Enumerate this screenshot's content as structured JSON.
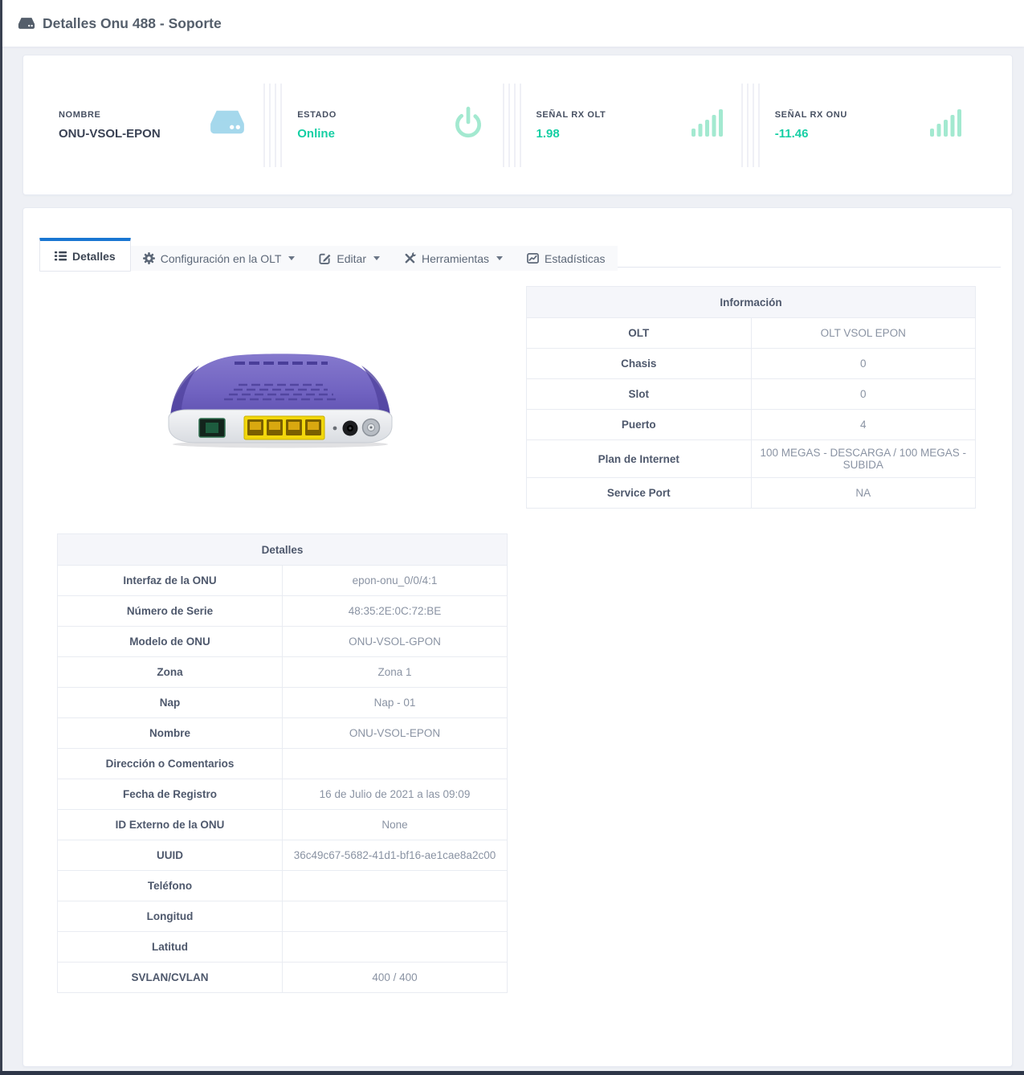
{
  "page": {
    "title": "Detalles Onu 488 - Soporte"
  },
  "colors": {
    "teal": "#15cfa4",
    "tab_blue": "#1976d2",
    "icon_blue": "#a5d8ec",
    "icon_mint": "#a3e9d0",
    "router_purple": "#7163c1"
  },
  "stats": [
    {
      "label": "NOMBRE",
      "value": "ONU-VSOL-EPON",
      "icon": "hdd-icon",
      "teal": false
    },
    {
      "label": "ESTADO",
      "value": "Online",
      "icon": "power-icon",
      "teal": true
    },
    {
      "label": "SEÑAL RX OLT",
      "value": "1.98",
      "icon": "signal-bars-icon",
      "teal": true
    },
    {
      "label": "SEÑAL RX ONU",
      "value": "-11.46",
      "icon": "signal-bars-icon",
      "teal": true
    }
  ],
  "tabs": [
    {
      "label": "Detalles",
      "icon": "list-icon",
      "active": true,
      "caret": false
    },
    {
      "label": "Configuración en la OLT",
      "icon": "gear-icon",
      "active": false,
      "caret": true
    },
    {
      "label": "Editar",
      "icon": "edit-icon",
      "active": false,
      "caret": true
    },
    {
      "label": "Herramientas",
      "icon": "tools-icon",
      "active": false,
      "caret": true
    },
    {
      "label": "Estadísticas",
      "icon": "chart-icon",
      "active": false,
      "caret": false
    }
  ],
  "info_table": {
    "title": "Información",
    "rows": [
      [
        "OLT",
        "OLT VSOL EPON"
      ],
      [
        "Chasis",
        "0"
      ],
      [
        "Slot",
        "0"
      ],
      [
        "Puerto",
        "4"
      ],
      [
        "Plan de Internet",
        "100 MEGAS - DESCARGA / 100 MEGAS - SUBIDA"
      ],
      [
        "Service Port",
        "NA"
      ]
    ]
  },
  "details_table": {
    "title": "Detalles",
    "rows": [
      [
        "Interfaz de la ONU",
        "epon-onu_0/0/4:1"
      ],
      [
        "Número de Serie",
        "48:35:2E:0C:72:BE"
      ],
      [
        "Modelo de ONU",
        "ONU-VSOL-GPON"
      ],
      [
        "Zona",
        "Zona 1"
      ],
      [
        "Nap",
        "Nap - 01"
      ],
      [
        "Nombre",
        "ONU-VSOL-EPON"
      ],
      [
        "Dirección o Comentarios",
        ""
      ],
      [
        "Fecha de Registro",
        "16 de Julio de 2021 a las 09:09"
      ],
      [
        "ID Externo de la ONU",
        "None"
      ],
      [
        "UUID",
        "36c49c67-5682-41d1-bf16-ae1cae8a2c00"
      ],
      [
        "Teléfono",
        ""
      ],
      [
        "Longitud",
        ""
      ],
      [
        "Latitud",
        ""
      ],
      [
        "SVLAN/CVLAN",
        "400 / 400"
      ]
    ]
  }
}
